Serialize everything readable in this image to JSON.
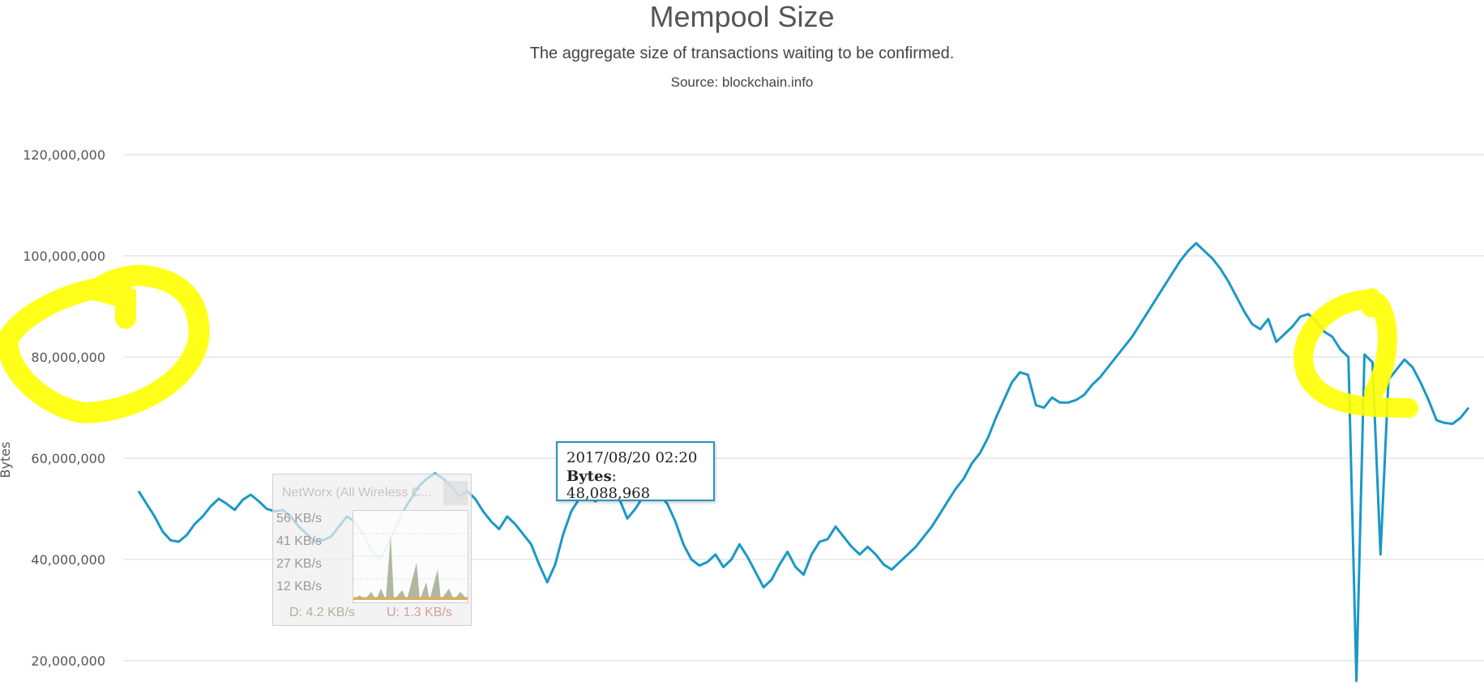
{
  "header": {
    "title": "Mempool Size",
    "subtitle": "The aggregate size of transactions waiting to be confirmed.",
    "source": "Source: blockchain.info"
  },
  "colors": {
    "series": "#1a98c7",
    "grid": "#d8d8d8",
    "highlight": "#ffff00"
  },
  "chart_data": {
    "type": "line",
    "title": "Mempool Size",
    "subtitle": "The aggregate size of transactions waiting to be confirmed.",
    "ylabel": "Bytes",
    "xlabel": "",
    "ylim": [
      16000000,
      128000000
    ],
    "yticks": [
      20000000,
      40000000,
      60000000,
      80000000,
      100000000,
      120000000
    ],
    "ytick_labels": [
      "20,000,000",
      "40,000,000",
      "60,000,000",
      "80,000,000",
      "100,000,000",
      "120,000,000"
    ],
    "grid": true,
    "legend": "none",
    "series": [
      {
        "values": [
          53500000,
          51000000,
          48500000,
          45500000,
          43800000,
          43500000,
          44800000,
          47000000,
          48500000,
          50500000,
          52000000,
          51000000,
          49800000,
          51800000,
          52800000,
          51500000,
          50000000,
          49500000,
          49800000,
          48500000,
          46500000,
          45000000,
          43500000,
          43800000,
          44500000,
          46500000,
          48500000,
          47500000,
          45000000,
          42000000,
          40000000,
          42500000,
          46000000,
          49500000,
          52000000,
          54500000,
          56000000,
          57000000,
          56000000,
          54500000,
          52500000,
          53500000,
          52000000,
          49500000,
          47500000,
          46000000,
          48500000,
          47000000,
          45000000,
          43000000,
          39000000,
          35500000,
          39000000,
          45000000,
          49500000,
          52000000,
          52500000,
          51500000,
          52500000,
          53000000,
          52000000,
          48088968,
          50000000,
          52500000,
          54000000,
          53000000,
          51000000,
          47500000,
          43000000,
          40000000,
          38800000,
          39500000,
          41000000,
          38500000,
          40000000,
          43000000,
          40500000,
          37500000,
          34500000,
          36000000,
          39000000,
          41500000,
          38500000,
          37000000,
          41000000,
          43500000,
          44000000,
          46500000,
          44500000,
          42500000,
          41000000,
          42500000,
          41000000,
          39000000,
          38000000,
          39500000,
          41000000,
          42500000,
          44500000,
          46500000,
          49000000,
          51500000,
          54000000,
          56000000,
          59000000,
          61000000,
          64000000,
          68000000,
          71500000,
          75000000,
          77000000,
          76500000,
          70500000,
          70000000,
          72000000,
          71000000,
          71000000,
          71500000,
          72500000,
          74500000,
          76000000,
          78000000,
          80000000,
          82000000,
          84000000,
          86500000,
          89000000,
          91500000,
          94000000,
          96500000,
          99000000,
          101000000,
          102500000,
          101000000,
          99500000,
          97500000,
          95000000,
          92000000,
          89000000,
          86500000,
          85500000,
          87500000,
          83000000,
          84500000,
          86000000,
          88000000,
          88500000,
          87000000,
          85000000,
          84000000,
          81500000,
          80000000,
          16000000,
          80500000,
          79000000,
          41000000,
          75500000,
          77500000,
          79500000,
          78000000,
          75000000,
          71500000,
          67500000,
          67000000,
          66800000,
          68000000,
          70000000
        ]
      }
    ],
    "tooltip": {
      "date": "2017/08/20 02:20",
      "label": "Bytes",
      "value": "48,088,968",
      "y": 48088968
    }
  },
  "tooltip": {
    "date": "2017/08/20 02:20",
    "label": "Bytes",
    "value": ": 48,088,968"
  },
  "overlay_widget": {
    "title": "NetWorx (All Wireless C...",
    "rates": [
      "56 KB/s",
      "41 KB/s",
      "27 KB/s",
      "12 KB/s"
    ],
    "download": "D: 4.2 KB/s",
    "upload": "U: 1.3 KB/s"
  }
}
